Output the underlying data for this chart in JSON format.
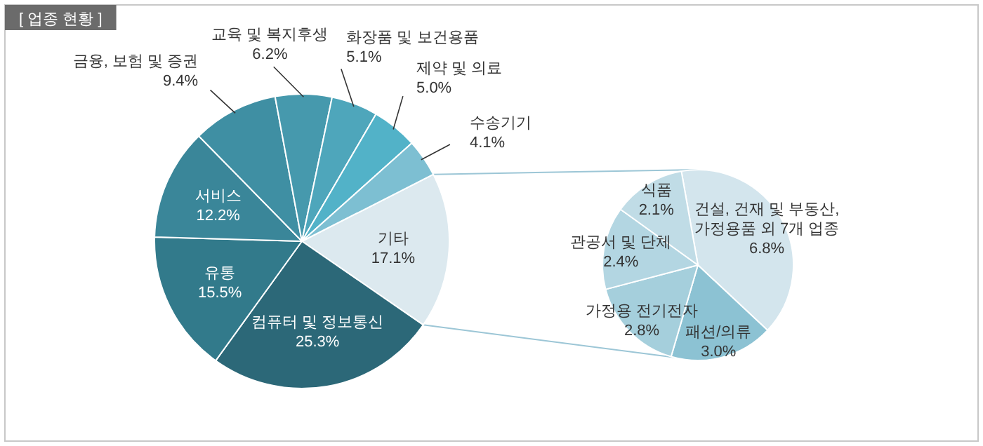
{
  "chart_data": [
    {
      "type": "pie",
      "title": "[ 업종 현황 ]",
      "categories": [
        "기타",
        "컴퓨터 및 정보통신",
        "유통",
        "서비스",
        "금융, 보험 및 증권",
        "교육 및 복지후생",
        "화장품 및 보건용품",
        "제약 및 의료",
        "수송기기"
      ],
      "values": [
        17.1,
        25.3,
        15.5,
        12.2,
        9.4,
        6.2,
        5.1,
        5.0,
        4.1
      ],
      "value_labels": [
        "17.1%",
        "25.3%",
        "15.5%",
        "12.2%",
        "9.4%",
        "6.2%",
        "5.1%",
        "5.0%",
        "4.1%"
      ],
      "colors": [
        "#dce9ef",
        "#2c6878",
        "#327a8b",
        "#3a8699",
        "#3f8fa3",
        "#4699ad",
        "#4ea6bb",
        "#52b2c8",
        "#7dbfd2"
      ]
    },
    {
      "type": "pie",
      "categories": [
        "건설, 건재 및 부동산, 가정용품 외 7개 업종",
        "패션/의류",
        "가정용 전기전자",
        "관공서 및 단체",
        "식품"
      ],
      "values": [
        6.8,
        3.0,
        2.8,
        2.4,
        2.1
      ],
      "value_labels": [
        "6.8%",
        "3.0%",
        "2.8%",
        "2.4%",
        "2.1%"
      ],
      "colors": [
        "#d3e5ed",
        "#8cc2d3",
        "#a5cfdc",
        "#b3d6e2",
        "#c0dce6"
      ]
    }
  ]
}
